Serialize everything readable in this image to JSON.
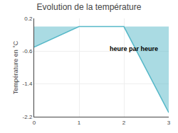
{
  "chart_data": {
    "type": "area",
    "title": "Evolution de la température",
    "ylabel": "Température en °C",
    "annotation": "heure par heure",
    "x": [
      0,
      1,
      2,
      3
    ],
    "values": [
      -0.5,
      0.0,
      0.0,
      -2.1
    ],
    "color": "#56b8c8",
    "xlim": [
      0,
      3
    ],
    "ylim": [
      -2.2,
      0.2
    ],
    "xticks": [
      0,
      1,
      2,
      3
    ],
    "yticks": [
      0.2,
      -0.6,
      -1.4,
      -2.2
    ],
    "grid": true
  }
}
